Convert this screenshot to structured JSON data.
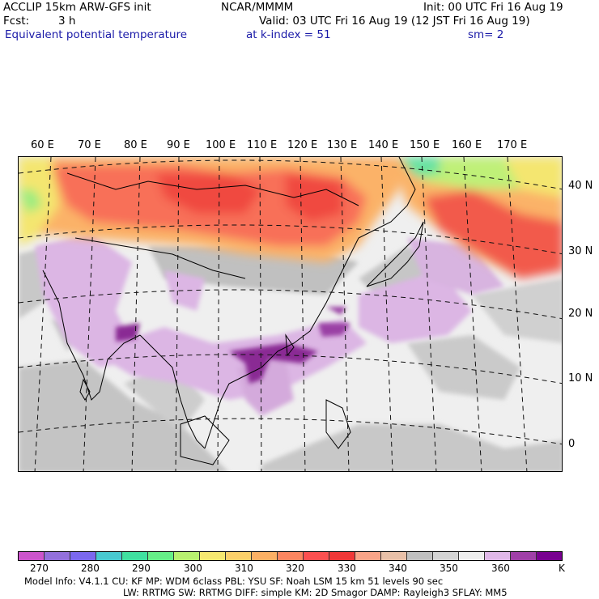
{
  "header": {
    "model": "ACCLIP 15km ARW-GFS init",
    "org": "NCAR/MMMM",
    "init": "Init: 00 UTC Fri 16 Aug 19",
    "fcst_label": "Fcst:",
    "fcst_value": "3 h",
    "valid": "Valid: 03 UTC Fri 16 Aug 19 (12 JST Fri 16 Aug 19)",
    "field": "Equivalent potential temperature",
    "level": "at k-index =  51",
    "smoothing": "sm= 2"
  },
  "map": {
    "longitude_labels": [
      "60 E",
      "70 E",
      "80 E",
      "90 E",
      "100 E",
      "110 E",
      "120 E",
      "130 E",
      "140 E",
      "150 E",
      "160 E",
      "170 E"
    ],
    "latitude_labels": [
      "40 N",
      "30 N",
      "20 N",
      "10 N",
      "0"
    ],
    "colors": {
      "land_outline": "#000000",
      "grid": "#000000",
      "background": "#f0f0f0"
    }
  },
  "colorbar": {
    "unit": "K",
    "labels": [
      "270",
      "280",
      "290",
      "300",
      "310",
      "320",
      "330",
      "340",
      "350",
      "360"
    ],
    "colors": [
      "#cc55cc",
      "#9370db",
      "#7b68ee",
      "#48c9d0",
      "#40e0a0",
      "#66ee88",
      "#b8f070",
      "#f6e870",
      "#fcd06a",
      "#fcb064",
      "#fc8660",
      "#fc5050",
      "#f03838",
      "#f8a488",
      "#e8c0a8",
      "#c0c0c0",
      "#d4d4d4",
      "#eeeeee",
      "#e0b8e8",
      "#a040a8",
      "#780090"
    ]
  },
  "model_info": {
    "line1": "Model Info: V4.1.1      CU: KF        MP: WDM 6class   PBL: YSU        SF: Noah LSM      15 km    51 levels    90 sec",
    "line2": "LW: RRTMG    SW: RRTMG   DIFF: simple KM: 2D Smagor DAMP: Rayleigh3  SFLAY: MM5"
  }
}
